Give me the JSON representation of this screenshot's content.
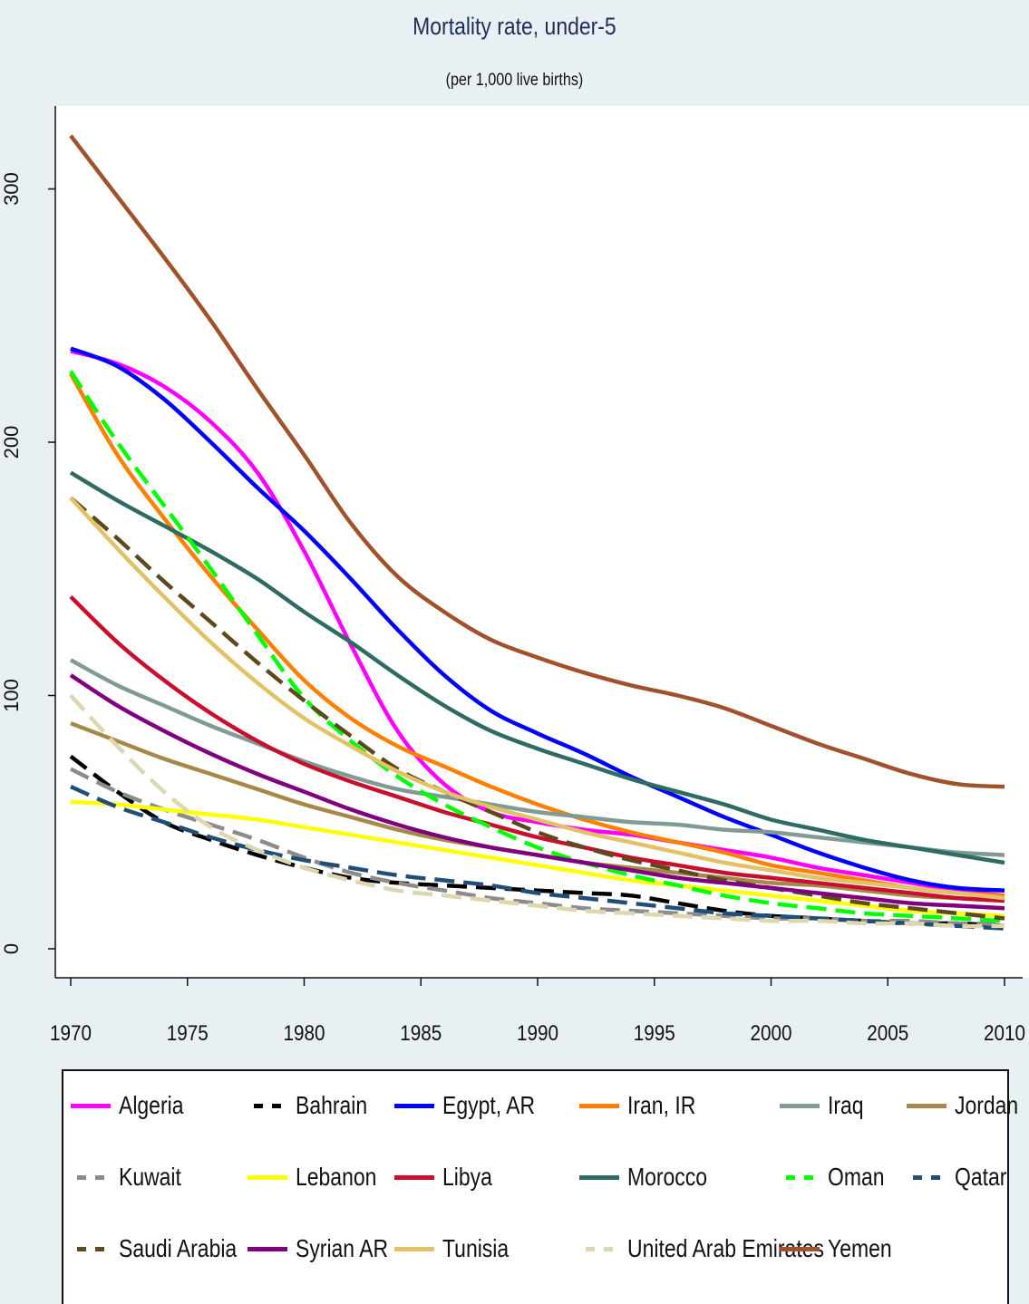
{
  "chart_data": {
    "type": "line",
    "title": "Mortality rate, under-5",
    "subtitle": "(per 1,000 live births)",
    "xlabel": "",
    "ylabel": "",
    "xlim": [
      1970,
      2010
    ],
    "ylim": [
      -10,
      330
    ],
    "x_ticks": [
      1970,
      1975,
      1980,
      1985,
      1990,
      1995,
      2000,
      2005,
      2010
    ],
    "y_ticks": [
      0,
      100,
      200,
      300
    ],
    "grid": false,
    "legend_position": "bottom",
    "x": [
      1970,
      1972,
      1974,
      1976,
      1978,
      1980,
      1982,
      1984,
      1986,
      1988,
      1990,
      1992,
      1994,
      1996,
      1998,
      2000,
      2002,
      2004,
      2006,
      2008,
      2010
    ],
    "series": [
      {
        "name": "Algeria",
        "color": "#ff00ff",
        "dashed": false,
        "values": [
          236,
          231,
          222,
          208,
          188,
          157,
          120,
          86,
          65,
          54,
          50,
          47,
          45,
          42,
          39,
          36,
          32,
          29,
          26,
          23,
          21
        ]
      },
      {
        "name": "Bahrain",
        "color": "#000000",
        "dashed": true,
        "values": [
          76,
          62,
          50,
          43,
          37,
          32,
          28,
          26,
          25,
          24,
          23,
          22,
          21,
          18,
          15,
          13,
          12,
          11,
          10,
          10,
          9
        ]
      },
      {
        "name": "Egypt, AR",
        "color": "#0000ff",
        "dashed": false,
        "values": [
          237,
          230,
          217,
          200,
          182,
          165,
          146,
          126,
          108,
          94,
          85,
          77,
          68,
          60,
          52,
          45,
          38,
          32,
          27,
          24,
          23
        ]
      },
      {
        "name": "Iran, IR",
        "color": "#ff7f00",
        "dashed": false,
        "values": [
          227,
          195,
          170,
          147,
          126,
          106,
          91,
          80,
          72,
          64,
          57,
          51,
          46,
          42,
          38,
          33,
          30,
          27,
          24,
          22,
          21
        ]
      },
      {
        "name": "Iraq",
        "color": "#7f9b93",
        "dashed": false,
        "values": [
          114,
          104,
          96,
          88,
          81,
          74,
          68,
          63,
          60,
          57,
          54,
          52,
          50,
          49,
          47,
          46,
          44,
          42,
          40,
          38,
          37
        ]
      },
      {
        "name": "Jordan",
        "color": "#a6894a",
        "dashed": false,
        "values": [
          89,
          82,
          75,
          69,
          63,
          57,
          52,
          47,
          43,
          40,
          37,
          34,
          32,
          30,
          28,
          26,
          25,
          23,
          21,
          20,
          19
        ]
      },
      {
        "name": "Kuwait",
        "color": "#8c8c8c",
        "dashed": true,
        "values": [
          71,
          62,
          55,
          49,
          43,
          36,
          30,
          26,
          23,
          20,
          18,
          16,
          15,
          14,
          13,
          12,
          12,
          11,
          11,
          10,
          10
        ]
      },
      {
        "name": "Lebanon",
        "color": "#ffff00",
        "dashed": false,
        "values": [
          58,
          57,
          55,
          53,
          51,
          48,
          45,
          42,
          39,
          36,
          33,
          30,
          27,
          25,
          23,
          21,
          19,
          17,
          15,
          14,
          13
        ]
      },
      {
        "name": "Libya",
        "color": "#c8102e",
        "dashed": false,
        "values": [
          139,
          121,
          106,
          93,
          82,
          73,
          66,
          60,
          54,
          49,
          44,
          40,
          36,
          33,
          30,
          28,
          26,
          24,
          22,
          20,
          19
        ]
      },
      {
        "name": "Morocco",
        "color": "#2e6b63",
        "dashed": false,
        "values": [
          188,
          177,
          167,
          157,
          146,
          133,
          121,
          108,
          96,
          86,
          79,
          73,
          67,
          62,
          57,
          51,
          47,
          43,
          40,
          37,
          34
        ]
      },
      {
        "name": "Oman",
        "color": "#00ff00",
        "dashed": true,
        "values": [
          228,
          200,
          175,
          150,
          124,
          99,
          82,
          68,
          57,
          48,
          40,
          34,
          29,
          25,
          21,
          18,
          16,
          14,
          13,
          12,
          11
        ]
      },
      {
        "name": "Qatar",
        "color": "#1f4e79",
        "dashed": true,
        "values": [
          64,
          56,
          50,
          44,
          39,
          35,
          32,
          29,
          27,
          25,
          22,
          20,
          18,
          16,
          14,
          13,
          12,
          11,
          10,
          9,
          8
        ]
      },
      {
        "name": "Saudi Arabia",
        "color": "#5c4a1e",
        "dashed": true,
        "values": [
          178,
          162,
          145,
          129,
          113,
          98,
          84,
          71,
          62,
          54,
          46,
          40,
          35,
          31,
          27,
          24,
          21,
          18,
          16,
          14,
          12
        ]
      },
      {
        "name": "Syrian AR",
        "color": "#800080",
        "dashed": false,
        "values": [
          108,
          96,
          86,
          77,
          69,
          62,
          55,
          49,
          44,
          40,
          37,
          34,
          31,
          28,
          26,
          24,
          22,
          20,
          18,
          17,
          16
        ]
      },
      {
        "name": "Tunisia",
        "color": "#e3c267",
        "dashed": false,
        "values": [
          178,
          158,
          139,
          121,
          105,
          91,
          80,
          70,
          62,
          56,
          51,
          46,
          42,
          38,
          34,
          31,
          28,
          26,
          24,
          22,
          20
        ]
      },
      {
        "name": "United Arab Emirates",
        "color": "#ddd6ae",
        "dashed": true,
        "values": [
          100,
          80,
          62,
          48,
          39,
          32,
          27,
          23,
          21,
          19,
          17,
          15,
          14,
          13,
          12,
          11,
          11,
          10,
          10,
          9,
          9
        ]
      },
      {
        "name": "Yemen",
        "color": "#a0522d",
        "dashed": false,
        "values": [
          321,
          297,
          273,
          248,
          221,
          195,
          168,
          147,
          133,
          122,
          115,
          109,
          104,
          100,
          95,
          88,
          81,
          75,
          69,
          65,
          64
        ]
      }
    ]
  }
}
